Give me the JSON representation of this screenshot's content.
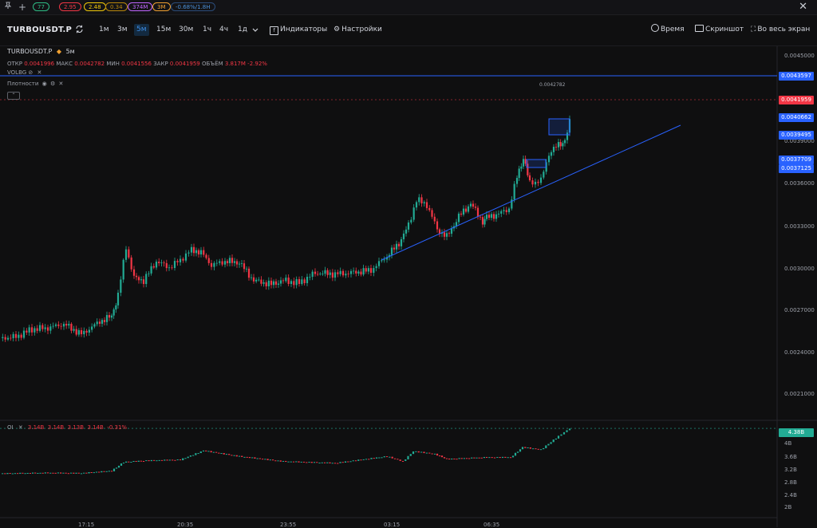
{
  "topbar": {
    "pills": [
      {
        "label": "77",
        "color": "#2ebd85",
        "border": "#2ebd85"
      },
      {
        "label": "2.95",
        "color": "#f23645",
        "border": "#f23645"
      },
      {
        "label": "2.48",
        "color": "#f0c808",
        "border": "#f0c808"
      },
      {
        "label": "0.34",
        "color": "#b8860b",
        "border": "#b8860b"
      },
      {
        "label": "374M",
        "color": "#c065ff",
        "border": "#c065ff"
      },
      {
        "label": "3M",
        "color": "#f0a030",
        "border": "#f0a030"
      },
      {
        "label": "-0.68%/1.8H",
        "color": "#4a90d9",
        "border": "#2b4c7a"
      }
    ],
    "close_glyph": "✕",
    "pin_glyph": "📌",
    "add_glyph": "+"
  },
  "toolbar": {
    "symbol": "TURBOUSDT.P",
    "timeframes": [
      "1м",
      "3м",
      "5м",
      "15м",
      "30м",
      "1ч",
      "4ч",
      "1д"
    ],
    "active_timeframe": "5м",
    "indicators_label": "Индикаторы",
    "settings_label": "Настройки",
    "time_label": "Время",
    "screenshot_label": "Скриншот",
    "fullscreen_label": "Во весь экран"
  },
  "legend": {
    "symbol": "TURBOUSDT.P",
    "interval": "5м",
    "open_label": "ОТКР",
    "open": "0.0041996",
    "high_label": "МАКС",
    "high": "0.0042782",
    "low_label": "МИН",
    "low": "0.0041556",
    "close_label": "ЗАКР",
    "close": "0.0041959",
    "volume_label": "ОБЪЁМ",
    "volume": "3.817M",
    "change": "-2.92%",
    "indicator1": "VOLBG",
    "indicator2": "Плотности",
    "max_label": "0.0042782"
  },
  "price_axis": {
    "ticks": [
      "0.0045000",
      "0.0039000",
      "0.0036000",
      "0.0033000",
      "0.0030000",
      "0.0027000",
      "0.0024000",
      "0.0021000"
    ],
    "labels": [
      {
        "text": "0.0043597",
        "bg": "#2962ff",
        "fg": "#ffffff"
      },
      {
        "text": "0.0041959",
        "bg": "#f23645",
        "fg": "#ffffff"
      },
      {
        "text": "0.0040662",
        "bg": "#2962ff",
        "fg": "#ffffff"
      },
      {
        "text": "0.0039495",
        "bg": "#2962ff",
        "fg": "#ffffff"
      },
      {
        "text": "0.0037709",
        "bg": "#2962ff",
        "fg": "#ffffff"
      },
      {
        "text": "0.0037125",
        "bg": "#2962ff",
        "fg": "#ffffff"
      }
    ]
  },
  "oi_panel": {
    "title": "OI",
    "values": [
      "3.14B",
      "3.14B",
      "3.13B",
      "3.14B",
      "-0.31%"
    ],
    "current": "4.38B",
    "ticks": [
      "4B",
      "3.6B",
      "3.2B",
      "2.8B",
      "2.4B",
      "2B"
    ]
  },
  "time_axis": {
    "ticks": [
      "17:15",
      "20:35",
      "23:55",
      "03:15",
      "06:35"
    ]
  },
  "colors": {
    "up": "#22ab94",
    "down": "#f23645",
    "accent": "#2962ff"
  },
  "chart_data": {
    "type": "line",
    "title": "",
    "xlabel": "",
    "ylabel": "",
    "x": [
      "17:15",
      "20:35",
      "23:55",
      "03:15",
      "06:35"
    ],
    "ylim": [
      0.0019,
      0.0047
    ],
    "series": [
      {
        "values": [
          0.00254,
          0.00312,
          0.00296,
          0.00315,
          0.00382
        ]
      }
    ],
    "oi_ylim": [
      1.9,
      4.5
    ],
    "oi_series": [
      {
        "values": [
          3.05,
          3.45,
          3.4,
          3.55,
          4.38
        ]
      }
    ]
  }
}
